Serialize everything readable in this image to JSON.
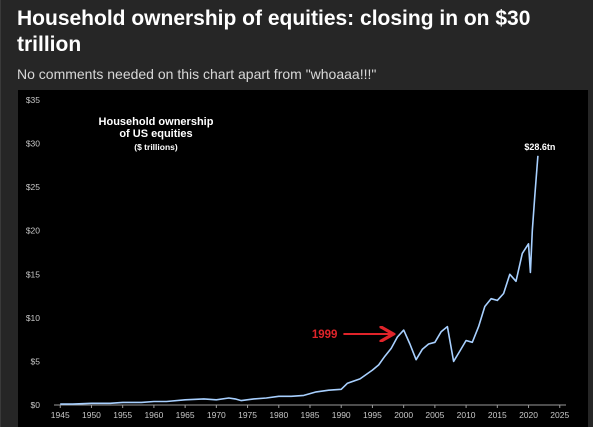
{
  "article": {
    "title": "Household ownership of equities: closing in on $30 trillion",
    "subtitle": "No comments needed on this chart apart from \"whoaaa!!!\""
  },
  "chart_data": {
    "type": "line",
    "title_lines": [
      "Household ownership",
      "of US equities"
    ],
    "unit_label": "($ trillions)",
    "xlabel": "",
    "ylabel": "",
    "xlim": [
      1944,
      2026
    ],
    "ylim": [
      0,
      35
    ],
    "x_ticks": [
      1945,
      1950,
      1955,
      1960,
      1965,
      1970,
      1975,
      1980,
      1985,
      1990,
      1995,
      2000,
      2005,
      2010,
      2015,
      2020,
      2025
    ],
    "y_ticks": [
      {
        "value": 0,
        "label": "$0"
      },
      {
        "value": 5,
        "label": "$5"
      },
      {
        "value": 10,
        "label": "$10"
      },
      {
        "value": 15,
        "label": "$15"
      },
      {
        "value": 20,
        "label": "$20"
      },
      {
        "value": 25,
        "label": "$25"
      },
      {
        "value": 30,
        "label": "$30"
      },
      {
        "value": 35,
        "label": "$35"
      }
    ],
    "grid": false,
    "line_color": "#a8d0ff",
    "series": [
      {
        "x": [
          1945,
          1947,
          1950,
          1953,
          1955,
          1958,
          1960,
          1962,
          1965,
          1968,
          1970,
          1972,
          1973,
          1974,
          1976,
          1978,
          1980,
          1982,
          1984,
          1986,
          1987,
          1988,
          1990,
          1991,
          1993,
          1995,
          1996,
          1997,
          1998,
          1999,
          2000,
          2001,
          2002,
          2003,
          2004,
          2005,
          2006,
          2007,
          2008,
          2009,
          2010,
          2011,
          2012,
          2013,
          2014,
          2015,
          2016,
          2017,
          2018,
          2019,
          2020,
          2020.3,
          2020.6,
          2021,
          2021.5
        ],
        "y": [
          0.1,
          0.1,
          0.2,
          0.2,
          0.3,
          0.3,
          0.4,
          0.4,
          0.6,
          0.7,
          0.6,
          0.8,
          0.7,
          0.5,
          0.7,
          0.8,
          1.0,
          1.0,
          1.1,
          1.5,
          1.6,
          1.7,
          1.8,
          2.5,
          3.0,
          4.0,
          4.6,
          5.6,
          6.5,
          7.8,
          8.6,
          7.0,
          5.2,
          6.4,
          7.0,
          7.2,
          8.4,
          9.0,
          5.0,
          6.2,
          7.4,
          7.2,
          9.0,
          11.3,
          12.2,
          12.0,
          12.8,
          15.0,
          14.2,
          17.4,
          18.5,
          15.2,
          20.0,
          24.0,
          28.6
        ]
      }
    ],
    "annotations": [
      {
        "text": "$28.6tn",
        "x": 2021.5,
        "y": 28.6
      },
      {
        "text": "1999",
        "x": 1999,
        "y": 8.6,
        "color": "#e0242a"
      }
    ]
  }
}
